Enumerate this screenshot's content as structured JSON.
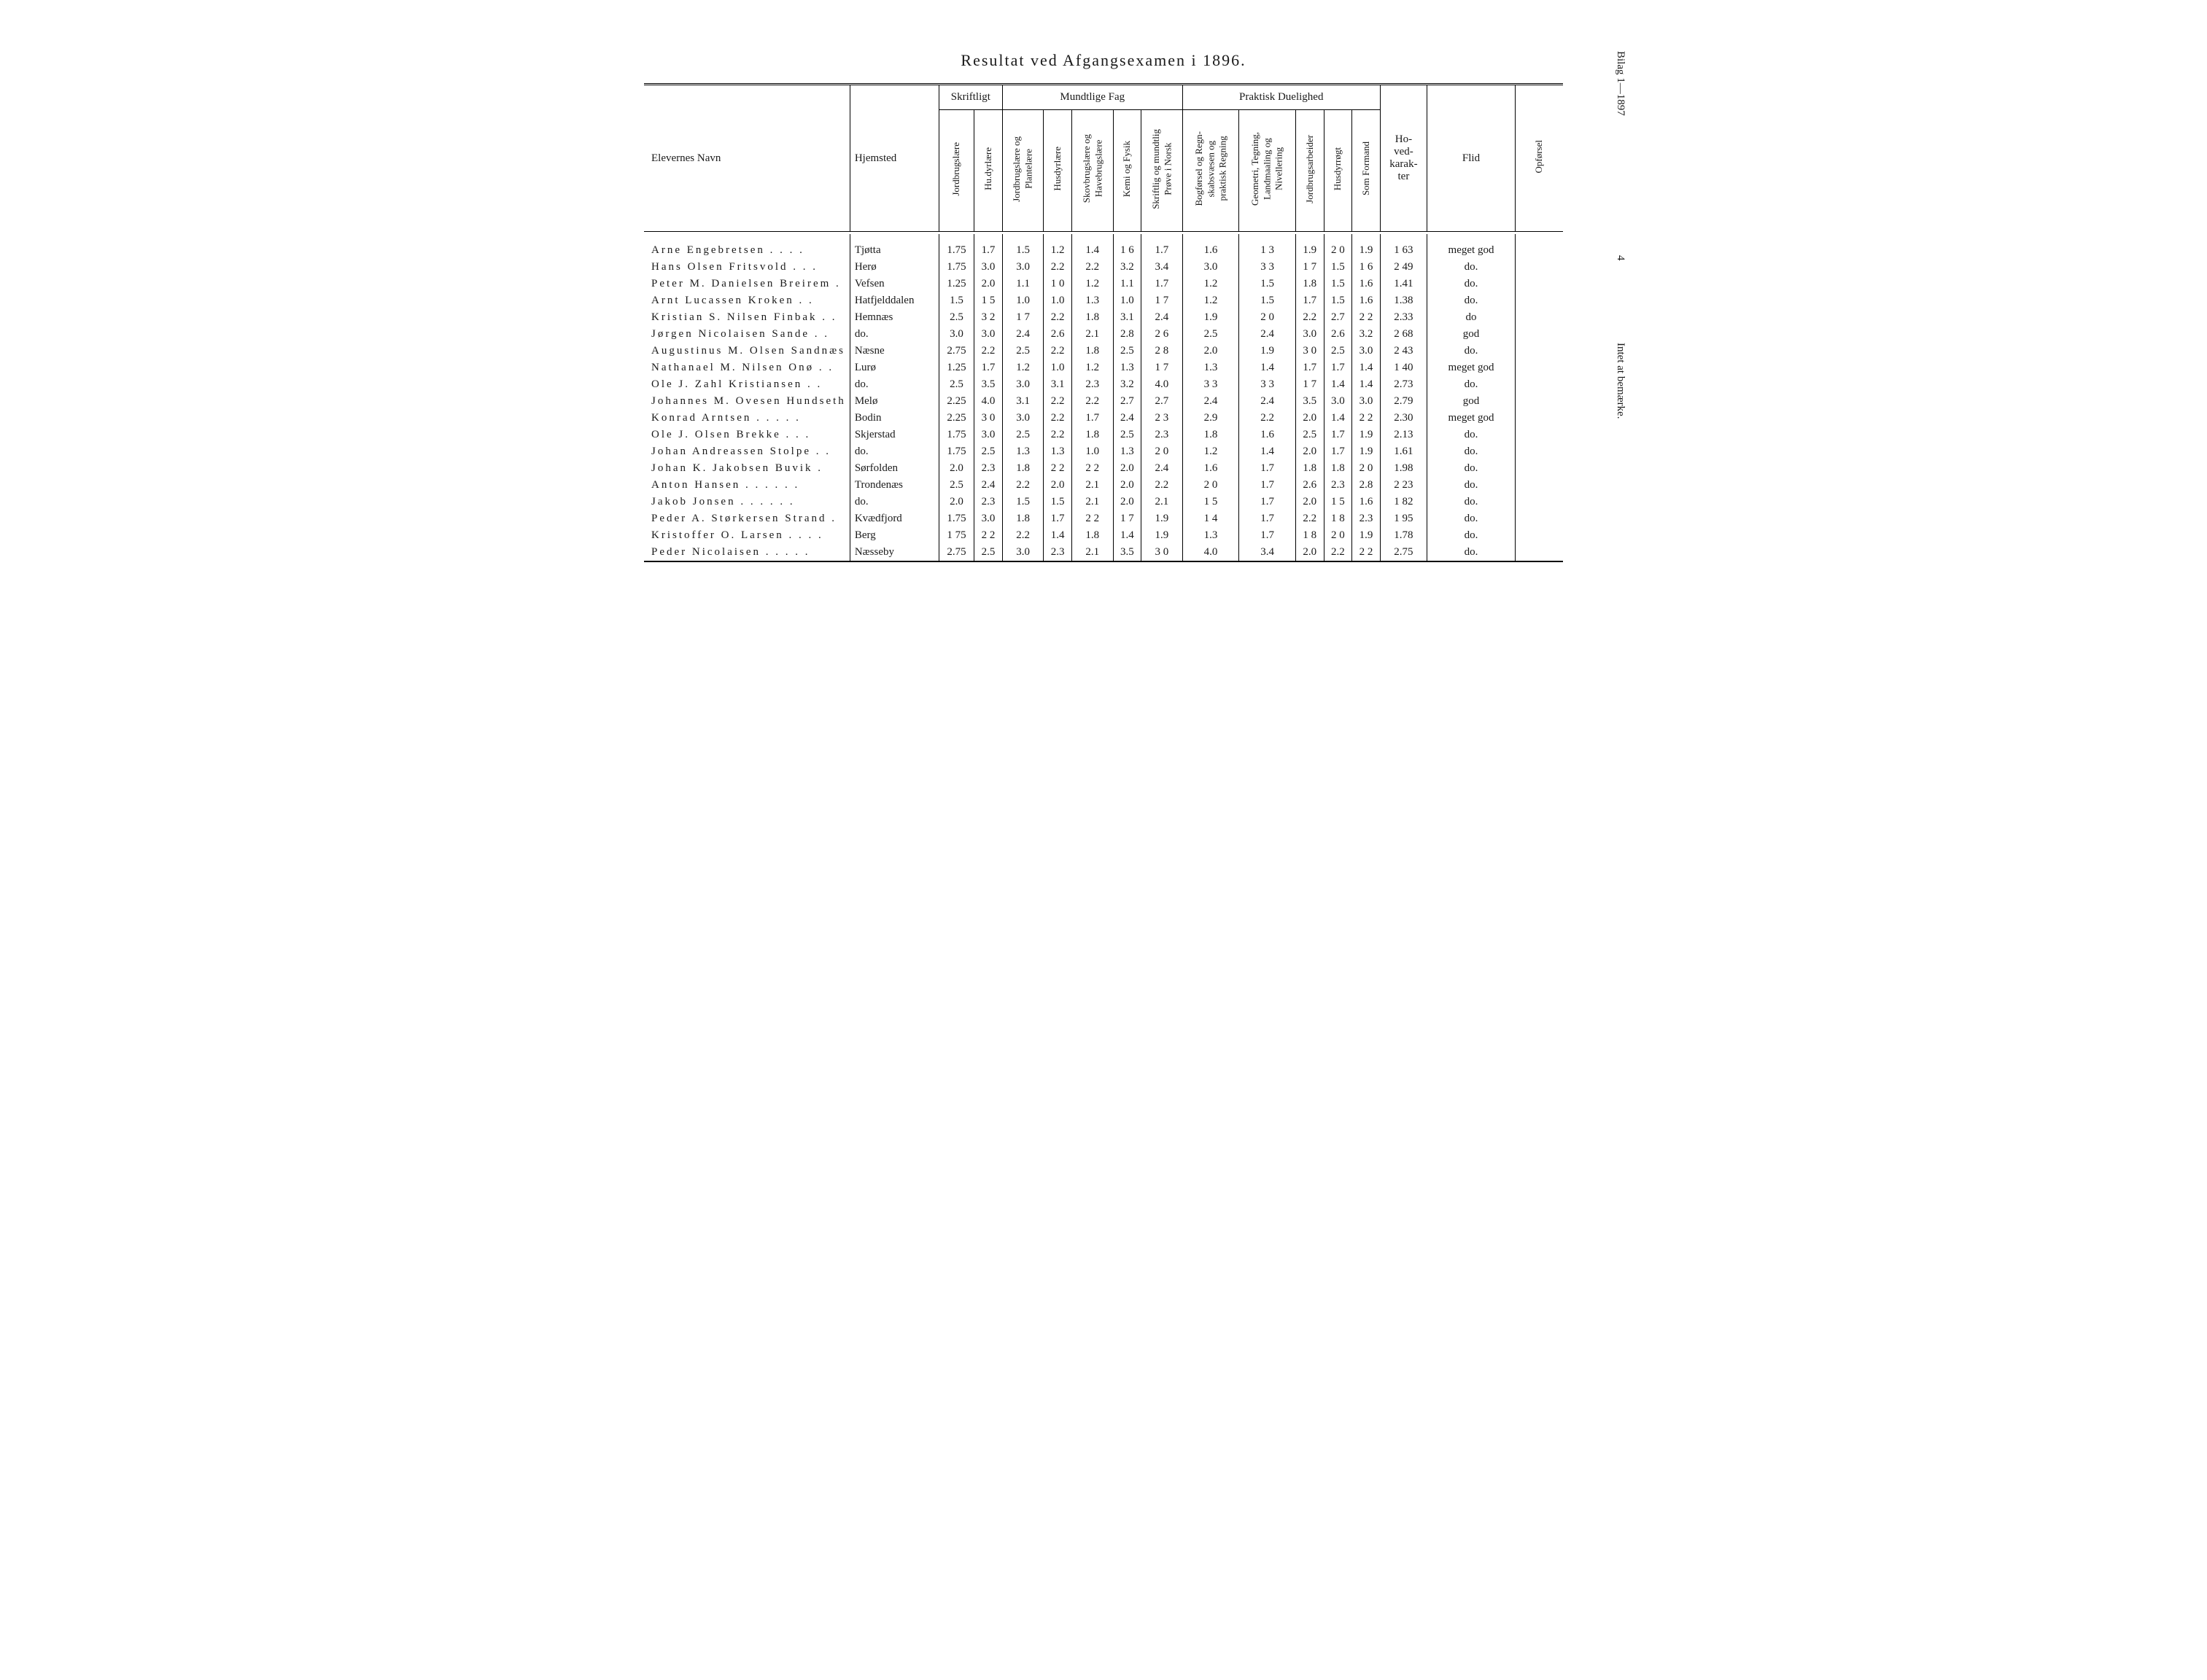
{
  "title": "Resultat ved Afgangsexamen i 1896.",
  "side": {
    "bilag": "Bilag 1—1897",
    "page_no": "4",
    "remark": "Intet at bemærke."
  },
  "header": {
    "name": "Elevernes Navn",
    "home": "Hjemsted",
    "groups": {
      "skriftligt": "Skriftligt",
      "mundtlige": "Mundtlige Fag",
      "praktisk": "Praktisk Duelighed"
    },
    "hoved": "Ho-\nved-\nkarak-\nter",
    "flid": "Flid",
    "opforsel": "Opførsel",
    "cols": {
      "c1": "Jordbrugslære",
      "c2": "Hu.dyrlære",
      "c3": "Jordbrugslære og\nPlantelære",
      "c4": "Husdyrlære",
      "c5": "Skovbrugslære og\nHavebrugslære",
      "c6": "Kemi og Fysik",
      "c7": "Skriftlig og mundtlig\nPrøve i Norsk",
      "c8": "Bogførsel og Regn-\nskabsvæsen og\npraktisk Regning",
      "c9": "Geometri, Tegning,\nLandmaaling og\nNivellering",
      "c10": "Jordbrugsarbeider",
      "c11": "Husdyrrøgt",
      "c12": "Som Formand"
    }
  },
  "rows": [
    {
      "name": "Arne Engebretsen    .  .  .  .",
      "home": "Tjøtta",
      "c": [
        "1.75",
        "1.7",
        "1.5",
        "1.2",
        "1.4",
        "1 6",
        "1.7",
        "1.6",
        "1 3",
        "1.9",
        "2 0",
        "1.9"
      ],
      "hoved": "1 63",
      "flid": "meget god"
    },
    {
      "name": "Hans Olsen Fritsvold    .  .  .",
      "home": "Herø",
      "c": [
        "1.75",
        "3.0",
        "3.0",
        "2.2",
        "2.2",
        "3.2",
        "3.4",
        "3.0",
        "3 3",
        "1 7",
        "1.5",
        "1 6"
      ],
      "hoved": "2 49",
      "flid": "do."
    },
    {
      "name": "Peter M. Danielsen Breirem .",
      "home": "Vefsen",
      "c": [
        "1.25",
        "2.0",
        "1.1",
        "1 0",
        "1.2",
        "1.1",
        "1.7",
        "1.2",
        "1.5",
        "1.8",
        "1.5",
        "1.6"
      ],
      "hoved": "1.41",
      "flid": "do."
    },
    {
      "name": "Arnt Lucassen Kroken    .  .",
      "home": "Hatfjelddalen",
      "c": [
        "1.5",
        "1 5",
        "1.0",
        "1.0",
        "1.3",
        "1.0",
        "1 7",
        "1.2",
        "1.5",
        "1.7",
        "1.5",
        "1.6"
      ],
      "hoved": "1.38",
      "flid": "do."
    },
    {
      "name": "Kristian S. Nilsen Finbak .  .",
      "home": "Hemnæs",
      "c": [
        "2.5",
        "3 2",
        "1 7",
        "2.2",
        "1.8",
        "3.1",
        "2.4",
        "1.9",
        "2 0",
        "2.2",
        "2.7",
        "2 2"
      ],
      "hoved": "2.33",
      "flid": "do"
    },
    {
      "name": "Jørgen Nicolaisen Sande  .  .",
      "home": "do.",
      "c": [
        "3.0",
        "3.0",
        "2.4",
        "2.6",
        "2.1",
        "2.8",
        "2 6",
        "2.5",
        "2.4",
        "3.0",
        "2.6",
        "3.2"
      ],
      "hoved": "2 68",
      "flid": "god"
    },
    {
      "name": "Augustinus M. Olsen Sandnæs",
      "home": "Næsne",
      "c": [
        "2.75",
        "2.2",
        "2.5",
        "2.2",
        "1.8",
        "2.5",
        "2 8",
        "2.0",
        "1.9",
        "3 0",
        "2.5",
        "3.0"
      ],
      "hoved": "2 43",
      "flid": "do."
    },
    {
      "name": "Nathanael M. Nilsen Onø .  .",
      "home": "Lurø",
      "c": [
        "1.25",
        "1.7",
        "1.2",
        "1.0",
        "1.2",
        "1.3",
        "1 7",
        "1.3",
        "1.4",
        "1.7",
        "1.7",
        "1.4"
      ],
      "hoved": "1 40",
      "flid": "meget god"
    },
    {
      "name": "Ole J. Zahl Kristiansen  .  .",
      "home": "do.",
      "c": [
        "2.5",
        "3.5",
        "3.0",
        "3.1",
        "2.3",
        "3.2",
        "4.0",
        "3 3",
        "3 3",
        "1 7",
        "1.4",
        "1.4"
      ],
      "hoved": "2.73",
      "flid": "do."
    },
    {
      "name": "Johannes M. Ovesen Hundseth",
      "home": "Melø",
      "c": [
        "2.25",
        "4.0",
        "3.1",
        "2.2",
        "2.2",
        "2.7",
        "2.7",
        "2.4",
        "2.4",
        "3.5",
        "3.0",
        "3.0"
      ],
      "hoved": "2.79",
      "flid": "god"
    },
    {
      "name": "Konrad Arntsen  .  .  .  .  .",
      "home": "Bodin",
      "c": [
        "2.25",
        "3 0",
        "3.0",
        "2.2",
        "1.7",
        "2.4",
        "2 3",
        "2.9",
        "2.2",
        "2.0",
        "1.4",
        "2 2"
      ],
      "hoved": "2.30",
      "flid": "meget god"
    },
    {
      "name": "Ole J. Olsen Brekke    .  .  .",
      "home": "Skjerstad",
      "c": [
        "1.75",
        "3.0",
        "2.5",
        "2.2",
        "1.8",
        "2.5",
        "2.3",
        "1.8",
        "1.6",
        "2.5",
        "1.7",
        "1.9"
      ],
      "hoved": "2.13",
      "flid": "do."
    },
    {
      "name": "Johan Andreassen Stolpe .  .",
      "home": "do.",
      "c": [
        "1.75",
        "2.5",
        "1.3",
        "1.3",
        "1.0",
        "1.3",
        "2 0",
        "1.2",
        "1.4",
        "2.0",
        "1.7",
        "1.9"
      ],
      "hoved": "1.61",
      "flid": "do."
    },
    {
      "name": "Johan K. Jakobsen Buvik   .",
      "home": "Sørfolden",
      "c": [
        "2.0",
        "2.3",
        "1.8",
        "2 2",
        "2 2",
        "2.0",
        "2.4",
        "1.6",
        "1.7",
        "1.8",
        "1.8",
        "2 0"
      ],
      "hoved": "1.98",
      "flid": "do."
    },
    {
      "name": "Anton Hansen .  .  .  .  .  .",
      "home": "Trondenæs",
      "c": [
        "2.5",
        "2.4",
        "2.2",
        "2.0",
        "2.1",
        "2.0",
        "2.2",
        "2 0",
        "1.7",
        "2.6",
        "2.3",
        "2.8"
      ],
      "hoved": "2 23",
      "flid": "do."
    },
    {
      "name": "Jakob Jonsen  .  .  .  .  .  .",
      "home": "do.",
      "c": [
        "2.0",
        "2.3",
        "1.5",
        "1.5",
        "2.1",
        "2.0",
        "2.1",
        "1 5",
        "1.7",
        "2.0",
        "1 5",
        "1.6"
      ],
      "hoved": "1 82",
      "flid": "do."
    },
    {
      "name": "Peder A. Størkersen Strand .",
      "home": "Kvædfjord",
      "c": [
        "1.75",
        "3.0",
        "1.8",
        "1.7",
        "2 2",
        "1 7",
        "1.9",
        "1 4",
        "1.7",
        "2.2",
        "1 8",
        "2.3"
      ],
      "hoved": "1 95",
      "flid": "do."
    },
    {
      "name": "Kristoffer O. Larsen .  .  .  .",
      "home": "Berg",
      "c": [
        "1 75",
        "2 2",
        "2.2",
        "1.4",
        "1.8",
        "1.4",
        "1.9",
        "1.3",
        "1.7",
        "1 8",
        "2 0",
        "1.9"
      ],
      "hoved": "1.78",
      "flid": "do."
    },
    {
      "name": "Peder Nicolaisen .  .  .  .  .",
      "home": "Næsseby",
      "c": [
        "2.75",
        "2.5",
        "3.0",
        "2.3",
        "2.1",
        "3.5",
        "3 0",
        "4.0",
        "3.4",
        "2.0",
        "2.2",
        "2 2"
      ],
      "hoved": "2.75",
      "flid": "do."
    }
  ]
}
